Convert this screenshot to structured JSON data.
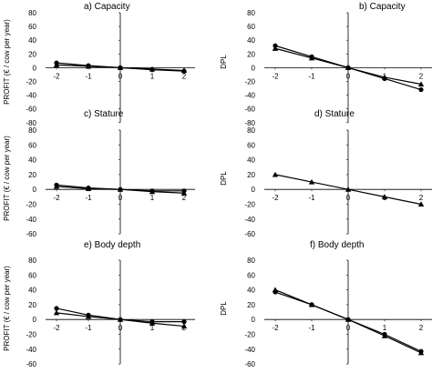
{
  "chart_data": [
    {
      "type": "line",
      "title": "a) Capacity",
      "ylabel": "PROFIT (€ / cow per year)",
      "x": [
        -2,
        -1,
        0,
        1,
        2
      ],
      "xticks": [
        "-2",
        "-1",
        "0",
        "1",
        "2"
      ],
      "yticks": [
        "80",
        "60",
        "40",
        "20",
        "0",
        "-20",
        "-40",
        "-60",
        "-80"
      ],
      "ylim": [
        -80,
        80
      ],
      "series": [
        {
          "marker": "circle",
          "values": [
            7,
            3,
            0,
            -3,
            -5
          ]
        },
        {
          "marker": "triangle",
          "values": [
            4,
            2,
            0,
            -2,
            -4
          ]
        }
      ]
    },
    {
      "type": "line",
      "title": "b) Capacity",
      "ylabel": "DPL",
      "x": [
        -2,
        -1,
        0,
        1,
        2
      ],
      "xticks": [
        "-2",
        "-1",
        "0",
        "1",
        "2"
      ],
      "yticks": [
        "80",
        "60",
        "40",
        "20",
        "0",
        "-20",
        "-40",
        "-60",
        "-80"
      ],
      "ylim": [
        -80,
        80
      ],
      "series": [
        {
          "marker": "circle",
          "values": [
            32,
            16,
            0,
            -16,
            -32
          ]
        },
        {
          "marker": "triangle",
          "values": [
            28,
            14,
            0,
            -14,
            -24
          ]
        }
      ]
    },
    {
      "type": "line",
      "title": "c) Stature",
      "ylabel": "PROFIT (€ / cow per year)",
      "x": [
        -2,
        -1,
        0,
        1,
        2
      ],
      "xticks": [
        "-2",
        "-1",
        "0",
        "1",
        "2"
      ],
      "yticks": [
        "80",
        "60",
        "40",
        "20",
        "0",
        "-20",
        "-40",
        "-60"
      ],
      "ylim": [
        -60,
        80
      ],
      "series": [
        {
          "marker": "circle",
          "values": [
            6,
            2,
            0,
            -2,
            -2
          ]
        },
        {
          "marker": "triangle",
          "values": [
            4,
            1,
            0,
            -3,
            -5
          ]
        }
      ]
    },
    {
      "type": "line",
      "title": "d) Stature",
      "ylabel": "DPL",
      "x": [
        -2,
        -1,
        0,
        1,
        2
      ],
      "xticks": [
        "-2",
        "-1",
        "0",
        "1",
        "2"
      ],
      "yticks": [
        "80",
        "60",
        "40",
        "20",
        "0",
        "-20",
        "-40",
        "-60"
      ],
      "ylim": [
        -60,
        80
      ],
      "series": [
        {
          "marker": "triangle",
          "values": [
            20,
            10,
            0,
            -10,
            -20
          ]
        }
      ]
    },
    {
      "type": "line",
      "title": "e) Body depth",
      "ylabel": "PROFIT (€ / cow per year)",
      "x": [
        -2,
        -1,
        0,
        1,
        2
      ],
      "xticks": [
        "-2",
        "-1",
        "0",
        "1",
        "2"
      ],
      "yticks": [
        "80",
        "60",
        "40",
        "20",
        "0",
        "-20",
        "-40",
        "-60"
      ],
      "ylim": [
        -60,
        80
      ],
      "series": [
        {
          "marker": "circle",
          "values": [
            15,
            6,
            0,
            -3,
            -3
          ]
        },
        {
          "marker": "triangle",
          "values": [
            9,
            4,
            0,
            -5,
            -9
          ]
        }
      ]
    },
    {
      "type": "line",
      "title": "f) Body depth",
      "ylabel": "DPL",
      "x": [
        -2,
        -1,
        0,
        1,
        2
      ],
      "xticks": [
        "-2",
        "-1",
        "0",
        "1",
        "2"
      ],
      "yticks": [
        "80",
        "60",
        "40",
        "20",
        "0",
        "-20",
        "-40",
        "-60"
      ],
      "ylim": [
        -60,
        80
      ],
      "series": [
        {
          "marker": "circle",
          "values": [
            37,
            20,
            0,
            -20,
            -43
          ]
        },
        {
          "marker": "triangle",
          "values": [
            40,
            20,
            0,
            -22,
            -45
          ]
        }
      ]
    }
  ]
}
